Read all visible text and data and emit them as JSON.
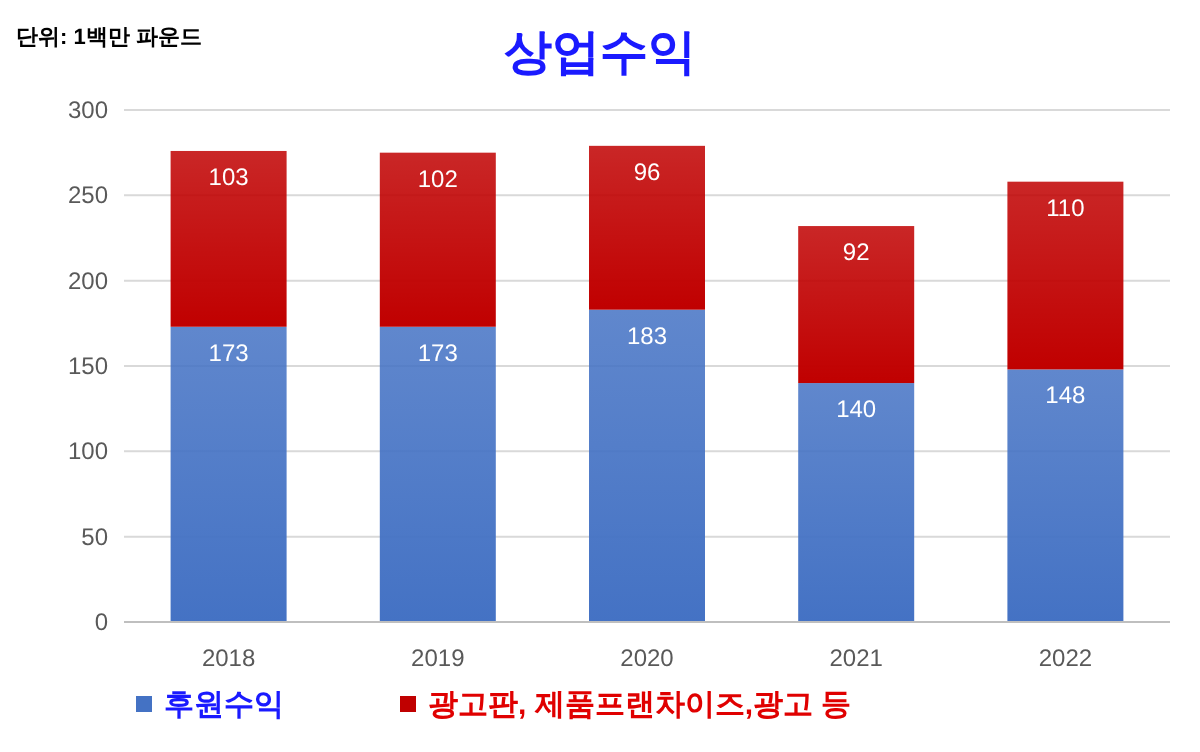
{
  "chart_data": {
    "type": "bar",
    "title": "상업수익",
    "annotations": [
      "단위: 1백만 파운드"
    ],
    "categories": [
      "2018",
      "2019",
      "2020",
      "2021",
      "2022"
    ],
    "series": [
      {
        "name": "후원수익",
        "color": "#4472c4",
        "values": [
          173,
          173,
          183,
          140,
          148
        ]
      },
      {
        "name": "광고판, 제품프랜차이즈,광고 등",
        "color": "#c00000",
        "values": [
          103,
          102,
          96,
          92,
          110
        ]
      }
    ],
    "stacked": true,
    "ylim": [
      0,
      300
    ],
    "yticks": [
      0,
      50,
      100,
      150,
      200,
      250,
      300
    ],
    "grid": "y",
    "legend": "bottom",
    "data_labels": true
  }
}
